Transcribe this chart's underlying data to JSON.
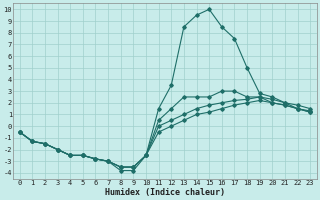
{
  "xlabel": "Humidex (Indice chaleur)",
  "background_color": "#c8ecea",
  "grid_color": "#a0d0cc",
  "line_color": "#1e6e68",
  "x": [
    0,
    1,
    2,
    3,
    4,
    5,
    6,
    7,
    8,
    9,
    10,
    11,
    12,
    13,
    14,
    15,
    16,
    17,
    18,
    19,
    20,
    21,
    22,
    23
  ],
  "series": [
    {
      "name": "top_peak",
      "y": [
        -0.5,
        -1.3,
        -1.5,
        -2.0,
        -2.5,
        -2.5,
        -2.8,
        -3.0,
        -3.5,
        -3.5,
        -2.5,
        1.5,
        3.5,
        8.5,
        9.5,
        10.0,
        8.5,
        7.5,
        5.0,
        2.8,
        2.5,
        2.0,
        1.5,
        1.2
      ]
    },
    {
      "name": "mid_peak",
      "y": [
        -0.5,
        -1.3,
        -1.5,
        -2.0,
        -2.5,
        -2.5,
        -2.8,
        -3.0,
        -3.5,
        -3.5,
        -2.5,
        0.5,
        1.5,
        2.5,
        2.5,
        2.5,
        3.0,
        3.0,
        2.5,
        2.5,
        2.0,
        1.8,
        1.5,
        1.2
      ]
    },
    {
      "name": "line_upper",
      "y": [
        -0.5,
        -1.3,
        -1.5,
        -2.0,
        -2.5,
        -2.5,
        -2.8,
        -3.0,
        -3.5,
        -3.5,
        -2.5,
        0.0,
        0.5,
        1.0,
        1.5,
        1.8,
        2.0,
        2.2,
        2.3,
        2.5,
        2.3,
        2.0,
        1.8,
        1.5
      ]
    },
    {
      "name": "line_lower",
      "y": [
        -0.5,
        -1.3,
        -1.5,
        -2.0,
        -2.5,
        -2.5,
        -2.8,
        -3.0,
        -3.8,
        -3.8,
        -2.5,
        -0.5,
        0.0,
        0.5,
        1.0,
        1.2,
        1.5,
        1.8,
        2.0,
        2.2,
        2.0,
        1.8,
        1.5,
        1.3
      ]
    }
  ],
  "ylim": [
    -4.5,
    10.5
  ],
  "xlim": [
    -0.5,
    23.5
  ],
  "yticks": [
    -4,
    -3,
    -2,
    -1,
    0,
    1,
    2,
    3,
    4,
    5,
    6,
    7,
    8,
    9,
    10
  ],
  "xticks": [
    0,
    1,
    2,
    3,
    4,
    5,
    6,
    7,
    8,
    9,
    10,
    11,
    12,
    13,
    14,
    15,
    16,
    17,
    18,
    19,
    20,
    21,
    22,
    23
  ],
  "tick_fontsize": 5,
  "xlabel_fontsize": 6,
  "figsize": [
    3.2,
    2.0
  ],
  "dpi": 100
}
